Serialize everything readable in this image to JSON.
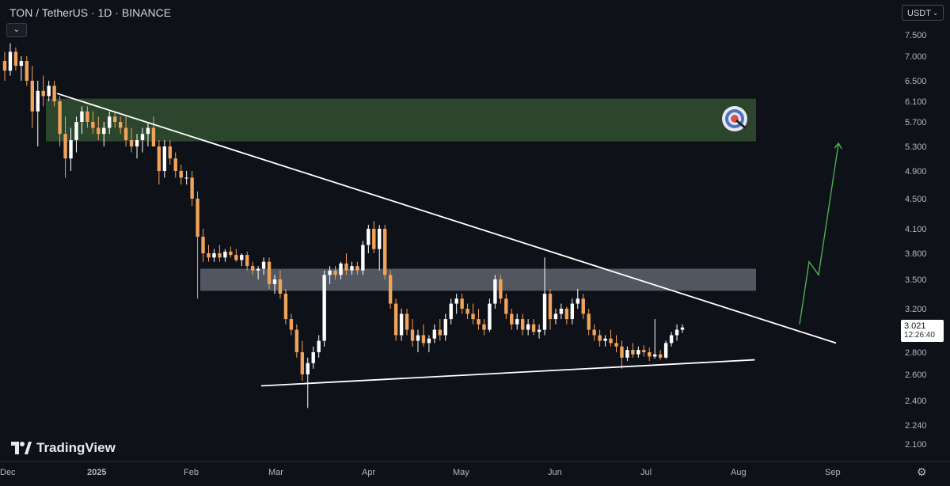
{
  "header": {
    "symbol_title": "TON / TetherUS · 1D · BINANCE",
    "collapse_glyph": "⌄",
    "currency": "USDT",
    "currency_chevron": "⌄"
  },
  "price_tag": {
    "price": "3.021",
    "countdown": "12:26:40",
    "color": "#ffffff"
  },
  "brand": {
    "name": "TradingView",
    "logo_icon": "tradingview-logo-icon"
  },
  "settings_icon": "gear-icon",
  "colors": {
    "background": "#0f1118",
    "up": "#ffffff",
    "down": "#f0a35a",
    "target_zone": "#2e4a2e",
    "resistance_zone": "#6a6e78",
    "trendline": "#ffffff",
    "projection": "#4caf50"
  },
  "chart_data": {
    "type": "candlestick",
    "title": "TON / TetherUS · 1D · BINANCE",
    "x_ticks": [
      "Dec",
      "2025",
      "Feb",
      "Mar",
      "Apr",
      "May",
      "Jun",
      "Jul",
      "Aug",
      "Sep"
    ],
    "y_ticks": [
      "7.500",
      "7.000",
      "6.500",
      "6.100",
      "5.700",
      "5.300",
      "4.900",
      "4.500",
      "4.100",
      "3.800",
      "3.500",
      "3.200",
      "2.800",
      "2.600",
      "2.400",
      "2.240",
      "2.100"
    ],
    "y_scale": "log",
    "ylim": [
      2.0,
      8.0
    ],
    "grid": false,
    "current_price": 3.021,
    "candles_ohlc": [
      [
        6.9,
        7.1,
        6.5,
        6.7
      ],
      [
        6.7,
        7.3,
        6.6,
        7.1
      ],
      [
        7.1,
        7.2,
        6.7,
        6.8
      ],
      [
        6.8,
        7.0,
        6.5,
        6.9
      ],
      [
        6.9,
        7.0,
        6.4,
        6.5
      ],
      [
        6.5,
        6.8,
        5.6,
        5.9
      ],
      [
        5.9,
        6.5,
        5.3,
        6.3
      ],
      [
        6.3,
        6.6,
        6.0,
        6.2
      ],
      [
        6.2,
        6.5,
        6.1,
        6.4
      ],
      [
        6.4,
        6.5,
        6.0,
        6.1
      ],
      [
        6.1,
        6.2,
        5.3,
        5.5
      ],
      [
        5.5,
        5.8,
        4.8,
        5.1
      ],
      [
        5.1,
        5.6,
        4.9,
        5.4
      ],
      [
        5.4,
        5.8,
        5.2,
        5.7
      ],
      [
        5.7,
        6.0,
        5.5,
        5.9
      ],
      [
        5.9,
        6.0,
        5.6,
        5.7
      ],
      [
        5.7,
        5.9,
        5.5,
        5.6
      ],
      [
        5.6,
        5.8,
        5.4,
        5.5
      ],
      [
        5.5,
        5.7,
        5.3,
        5.6
      ],
      [
        5.6,
        5.9,
        5.5,
        5.8
      ],
      [
        5.8,
        5.9,
        5.6,
        5.7
      ],
      [
        5.7,
        5.8,
        5.5,
        5.6
      ],
      [
        5.6,
        5.8,
        5.3,
        5.4
      ],
      [
        5.4,
        5.6,
        5.2,
        5.3
      ],
      [
        5.3,
        5.5,
        5.1,
        5.4
      ],
      [
        5.4,
        5.6,
        5.2,
        5.5
      ],
      [
        5.5,
        5.7,
        5.3,
        5.6
      ],
      [
        5.6,
        5.8,
        5.4,
        5.3
      ],
      [
        5.3,
        5.4,
        4.7,
        4.9
      ],
      [
        4.9,
        5.4,
        4.8,
        5.3
      ],
      [
        5.3,
        5.4,
        5.0,
        5.1
      ],
      [
        5.1,
        5.2,
        4.8,
        4.9
      ],
      [
        4.9,
        5.0,
        4.7,
        4.8
      ],
      [
        4.8,
        4.9,
        4.7,
        4.8
      ],
      [
        4.8,
        4.9,
        4.4,
        4.5
      ],
      [
        4.5,
        4.6,
        3.3,
        4.0
      ],
      [
        4.0,
        4.1,
        3.7,
        3.8
      ],
      [
        3.8,
        3.9,
        3.7,
        3.75
      ],
      [
        3.75,
        3.85,
        3.7,
        3.8
      ],
      [
        3.8,
        3.9,
        3.7,
        3.75
      ],
      [
        3.75,
        3.85,
        3.7,
        3.82
      ],
      [
        3.82,
        3.88,
        3.75,
        3.78
      ],
      [
        3.78,
        3.85,
        3.7,
        3.72
      ],
      [
        3.72,
        3.8,
        3.65,
        3.78
      ],
      [
        3.78,
        3.82,
        3.6,
        3.65
      ],
      [
        3.65,
        3.7,
        3.55,
        3.6
      ],
      [
        3.6,
        3.65,
        3.5,
        3.62
      ],
      [
        3.62,
        3.75,
        3.55,
        3.7
      ],
      [
        3.7,
        3.75,
        3.4,
        3.45
      ],
      [
        3.45,
        3.55,
        3.35,
        3.5
      ],
      [
        3.5,
        3.6,
        3.3,
        3.35
      ],
      [
        3.35,
        3.4,
        3.05,
        3.1
      ],
      [
        3.1,
        3.15,
        2.95,
        3.0
      ],
      [
        3.0,
        3.05,
        2.75,
        2.8
      ],
      [
        2.8,
        2.9,
        2.55,
        2.6
      ],
      [
        2.6,
        2.75,
        2.35,
        2.7
      ],
      [
        2.7,
        2.85,
        2.65,
        2.8
      ],
      [
        2.8,
        2.95,
        2.75,
        2.9
      ],
      [
        2.9,
        3.6,
        2.85,
        3.55
      ],
      [
        3.55,
        3.65,
        3.45,
        3.6
      ],
      [
        3.6,
        3.65,
        3.5,
        3.55
      ],
      [
        3.55,
        3.7,
        3.5,
        3.68
      ],
      [
        3.68,
        3.8,
        3.55,
        3.6
      ],
      [
        3.6,
        3.7,
        3.55,
        3.65
      ],
      [
        3.65,
        3.7,
        3.55,
        3.6
      ],
      [
        3.6,
        3.95,
        3.55,
        3.9
      ],
      [
        3.9,
        4.15,
        3.8,
        4.1
      ],
      [
        4.1,
        4.2,
        3.8,
        3.85
      ],
      [
        3.85,
        4.15,
        3.6,
        4.1
      ],
      [
        4.1,
        4.15,
        3.5,
        3.55
      ],
      [
        3.55,
        3.6,
        3.2,
        3.25
      ],
      [
        3.25,
        3.3,
        2.9,
        2.95
      ],
      [
        2.95,
        3.2,
        2.9,
        3.15
      ],
      [
        3.15,
        3.2,
        2.95,
        3.0
      ],
      [
        3.0,
        3.1,
        2.85,
        2.9
      ],
      [
        2.9,
        3.0,
        2.8,
        2.95
      ],
      [
        2.95,
        3.05,
        2.85,
        2.88
      ],
      [
        2.88,
        2.95,
        2.8,
        2.92
      ],
      [
        2.92,
        3.05,
        2.88,
        3.0
      ],
      [
        3.0,
        3.1,
        2.9,
        2.95
      ],
      [
        2.95,
        3.15,
        2.9,
        3.1
      ],
      [
        3.1,
        3.3,
        3.05,
        3.25
      ],
      [
        3.25,
        3.35,
        3.15,
        3.3
      ],
      [
        3.3,
        3.35,
        3.15,
        3.2
      ],
      [
        3.2,
        3.25,
        3.1,
        3.15
      ],
      [
        3.15,
        3.25,
        3.05,
        3.1
      ],
      [
        3.1,
        3.2,
        3.0,
        3.05
      ],
      [
        3.05,
        3.1,
        2.95,
        3.0
      ],
      [
        3.0,
        3.3,
        2.98,
        3.25
      ],
      [
        3.25,
        3.55,
        3.2,
        3.5
      ],
      [
        3.5,
        3.55,
        3.25,
        3.3
      ],
      [
        3.3,
        3.35,
        3.1,
        3.15
      ],
      [
        3.15,
        3.2,
        3.0,
        3.05
      ],
      [
        3.05,
        3.15,
        3.0,
        3.1
      ],
      [
        3.1,
        3.15,
        2.95,
        3.0
      ],
      [
        3.0,
        3.1,
        2.95,
        3.05
      ],
      [
        3.05,
        3.1,
        2.95,
        2.98
      ],
      [
        2.98,
        3.05,
        2.92,
        3.0
      ],
      [
        3.0,
        3.75,
        2.95,
        3.35
      ],
      [
        3.35,
        3.4,
        3.0,
        3.1
      ],
      [
        3.1,
        3.2,
        3.05,
        3.15
      ],
      [
        3.15,
        3.25,
        3.1,
        3.2
      ],
      [
        3.2,
        3.22,
        3.05,
        3.1
      ],
      [
        3.1,
        3.3,
        3.05,
        3.25
      ],
      [
        3.25,
        3.4,
        3.2,
        3.3
      ],
      [
        3.3,
        3.35,
        3.1,
        3.15
      ],
      [
        3.15,
        3.2,
        2.95,
        3.0
      ],
      [
        3.0,
        3.05,
        2.9,
        2.95
      ],
      [
        2.95,
        3.0,
        2.85,
        2.9
      ],
      [
        2.9,
        2.95,
        2.85,
        2.92
      ],
      [
        2.92,
        3.0,
        2.85,
        2.88
      ],
      [
        2.88,
        2.95,
        2.8,
        2.85
      ],
      [
        2.85,
        2.9,
        2.65,
        2.75
      ],
      [
        2.75,
        2.85,
        2.72,
        2.82
      ],
      [
        2.82,
        2.88,
        2.75,
        2.78
      ],
      [
        2.78,
        2.85,
        2.75,
        2.82
      ],
      [
        2.82,
        2.86,
        2.76,
        2.8
      ],
      [
        2.8,
        2.84,
        2.72,
        2.76
      ],
      [
        2.76,
        3.1,
        2.74,
        2.78
      ],
      [
        2.78,
        2.82,
        2.73,
        2.75
      ],
      [
        2.75,
        2.9,
        2.74,
        2.88
      ],
      [
        2.88,
        2.98,
        2.85,
        2.95
      ],
      [
        2.95,
        3.05,
        2.9,
        3.0
      ],
      [
        3.0,
        3.05,
        2.97,
        3.021
      ]
    ],
    "zones": [
      {
        "name": "target",
        "low": 5.38,
        "high": 6.15,
        "color": "#2e4a2e"
      },
      {
        "name": "resistance",
        "low": 3.38,
        "high": 3.62,
        "color": "#6a6e78"
      }
    ],
    "trendlines": [
      {
        "name": "descending-resistance",
        "from": [
          0.06,
          6.25
        ],
        "to": [
          0.755,
          2.88
        ]
      },
      {
        "name": "ascending-support",
        "from": [
          0.275,
          2.51
        ],
        "to": [
          0.757,
          2.72
        ]
      }
    ],
    "projection": {
      "points": [
        [
          0.725,
          3.05
        ],
        [
          0.735,
          3.7
        ],
        [
          0.745,
          3.55
        ],
        [
          0.766,
          5.35
        ]
      ]
    },
    "target_icon": "target-icon"
  }
}
